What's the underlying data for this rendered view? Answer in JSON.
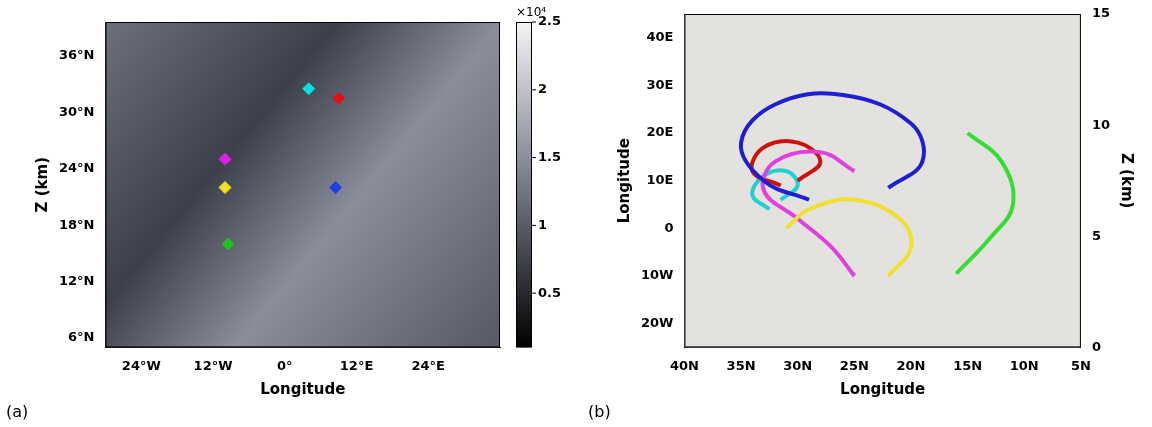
{
  "chart_data": [
    {
      "type": "scatter",
      "panel": "(a)",
      "xlabel": "Longitude",
      "ylabel": "Z (km)",
      "xlim": [
        -30,
        36
      ],
      "xticks": [
        {
          "value": -24,
          "label": "24°W"
        },
        {
          "value": -12,
          "label": "12°W"
        },
        {
          "value": 0,
          "label": "0°"
        },
        {
          "value": 12,
          "label": "12°E"
        },
        {
          "value": 24,
          "label": "24°E"
        }
      ],
      "ylim": [
        5,
        39.6
      ],
      "yticks": [
        {
          "value": 6,
          "label": "6°N"
        },
        {
          "value": 12,
          "label": "12°N"
        },
        {
          "value": 18,
          "label": "18°N"
        },
        {
          "value": 24,
          "label": "24°N"
        },
        {
          "value": 30,
          "label": "30°N"
        },
        {
          "value": 36,
          "label": "36°N"
        }
      ],
      "grid": false,
      "marker": "diamond",
      "series": [
        {
          "color": "#00e0e0",
          "x": [
            4
          ],
          "y": [
            32.5
          ]
        },
        {
          "color": "#e01010",
          "x": [
            9
          ],
          "y": [
            31.5
          ]
        },
        {
          "color": "#e020e0",
          "x": [
            -10
          ],
          "y": [
            25
          ]
        },
        {
          "color": "#f0e020",
          "x": [
            -10
          ],
          "y": [
            22
          ]
        },
        {
          "color": "#20c020",
          "x": [
            -9.5
          ],
          "y": [
            16
          ]
        },
        {
          "color": "#2040e0",
          "x": [
            8.5
          ],
          "y": [
            22
          ]
        }
      ],
      "colorbar": {
        "range": [
          0.1,
          2.5
        ],
        "ticks": [
          0.5,
          1,
          1.5,
          2,
          2.5
        ],
        "multiplier": "×10⁴"
      }
    },
    {
      "type": "line",
      "panel": "(b)",
      "xlabel": "Longitude",
      "ylabel": "Longitude",
      "y2label": "Z (km)",
      "xlim": [
        40,
        5
      ],
      "xticks": [
        {
          "value": 40,
          "label": "40N"
        },
        {
          "value": 35,
          "label": "35N"
        },
        {
          "value": 30,
          "label": "30N"
        },
        {
          "value": 25,
          "label": "25N"
        },
        {
          "value": 20,
          "label": "20N"
        },
        {
          "value": 15,
          "label": "15N"
        },
        {
          "value": 10,
          "label": "10N"
        },
        {
          "value": 5,
          "label": "5N"
        }
      ],
      "ylim": [
        -25,
        45
      ],
      "yticks": [
        {
          "value": -20,
          "label": "20W"
        },
        {
          "value": -10,
          "label": "10W"
        },
        {
          "value": 0,
          "label": "0"
        },
        {
          "value": 10,
          "label": "10E"
        },
        {
          "value": 20,
          "label": "20E"
        },
        {
          "value": 30,
          "label": "30E"
        },
        {
          "value": 40,
          "label": "40E"
        }
      ],
      "y2lim": [
        0,
        15
      ],
      "y2ticks": [
        0,
        5,
        10,
        15
      ],
      "grid": false,
      "marker": "none",
      "line_style": "solid",
      "series": [
        {
          "color": "#1f1fcf",
          "x": [
            22,
            19,
            20,
            26,
            32,
            35,
            33,
            29
          ],
          "y": [
            8.5,
            14,
            22,
            28,
            26,
            18,
            10,
            6
          ]
        },
        {
          "color": "#33dd33",
          "x": [
            16,
            13,
            11,
            12,
            15
          ],
          "y": [
            -9.5,
            -2,
            5,
            14,
            20
          ]
        },
        {
          "color": "#f0e030",
          "x": [
            22,
            20,
            21,
            25,
            29,
            31
          ],
          "y": [
            -10,
            -4,
            2,
            6,
            4,
            0
          ]
        },
        {
          "color": "#e040e0",
          "x": [
            25,
            27,
            30,
            33,
            32,
            28,
            25
          ],
          "y": [
            -10,
            -4,
            2,
            8,
            14,
            16,
            12
          ]
        },
        {
          "color": "#cc1111",
          "x": [
            31.5,
            34,
            33,
            30,
            28,
            30
          ],
          "y": [
            9,
            12,
            17,
            18,
            14,
            10
          ]
        },
        {
          "color": "#20d0d0",
          "x": [
            32.5,
            34,
            33,
            31,
            30,
            31.5
          ],
          "y": [
            4,
            7,
            11,
            12,
            9,
            6
          ]
        }
      ]
    }
  ]
}
